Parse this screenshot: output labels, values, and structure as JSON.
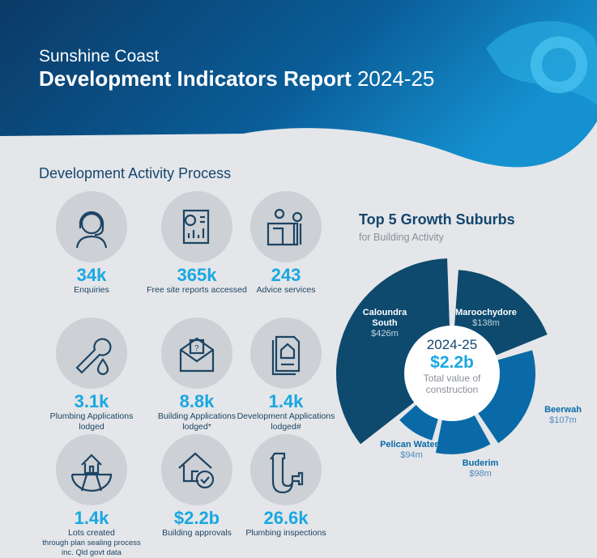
{
  "header": {
    "subtitle": "Sunshine Coast",
    "title": "Development Indicators Report",
    "year": "2024-25"
  },
  "process": {
    "title": "Development Activity Process",
    "items": [
      {
        "icon": "headset-icon",
        "value": "34k",
        "label": "Enquiries",
        "sub": ""
      },
      {
        "icon": "report-chart-icon",
        "value": "365k",
        "label": "Free site reports accessed",
        "sub": ""
      },
      {
        "icon": "counter-service-icon",
        "value": "243",
        "label": "Advice services",
        "sub": ""
      },
      {
        "icon": "wrench-drop-icon",
        "value": "3.1k",
        "label": "Plumbing Applications lodged",
        "sub": ""
      },
      {
        "icon": "envelope-house-icon",
        "value": "8.8k",
        "label": "Building Applications lodged*",
        "sub": ""
      },
      {
        "icon": "document-house-icon",
        "value": "1.4k",
        "label": "Development Applications lodged#",
        "sub": ""
      },
      {
        "icon": "house-lots-icon",
        "value": "1.4k",
        "label": "Lots created",
        "sub": "through plan sealing process inc. Qld govt data"
      },
      {
        "icon": "house-check-icon",
        "value": "$2.2b",
        "label": "Building approvals",
        "sub": ""
      },
      {
        "icon": "pipe-icon",
        "value": "26.6k",
        "label": "Plumbing inspections",
        "sub": ""
      }
    ]
  },
  "growth": {
    "title": "Top 5 Growth Suburbs",
    "subtitle": "for Building Activity",
    "center_year": "2024-25",
    "center_value": "$2.2b",
    "center_label": "Total value of construction"
  },
  "chart_data": {
    "type": "pie",
    "title": "Top 5 Growth Suburbs",
    "categories": [
      "Caloundra South",
      "Maroochydore",
      "Beerwah",
      "Buderim",
      "Pelican Waters"
    ],
    "values": [
      426,
      138,
      107,
      98,
      94
    ],
    "value_labels": [
      "$426m",
      "$138m",
      "$107m",
      "$98m",
      "$94m"
    ],
    "unit": "$m",
    "colors": [
      "#0d4a6e",
      "#0d4a6e",
      "#0a6aa8",
      "#0a6aa8",
      "#0a6aa8"
    ]
  }
}
